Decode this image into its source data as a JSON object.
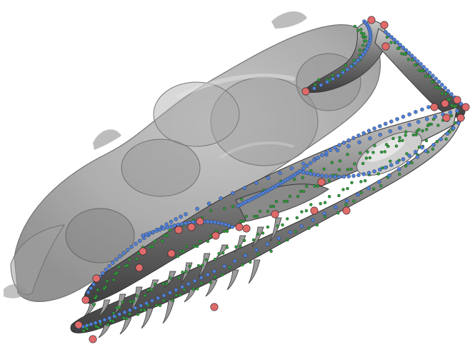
{
  "scene": {
    "background": "#ffffff",
    "colors": {
      "translucent_bone": "#8f8f8f",
      "opaque_bone": "#7a7a7a",
      "bone_highlight": "#d9d9d9",
      "bone_shadow": "#3f3f3f",
      "fixed_landmark": "#e06a6a",
      "curve_semilandmark": "#4f7fd8",
      "surface_semilandmark": "#2f9e3a"
    },
    "landmark_types": [
      "fixed-landmark",
      "curve-semilandmark",
      "surface-semilandmark"
    ],
    "elements": [
      "translucent-cranium",
      "opaque-mandible",
      "opaque-quadrate",
      "teeth"
    ]
  }
}
